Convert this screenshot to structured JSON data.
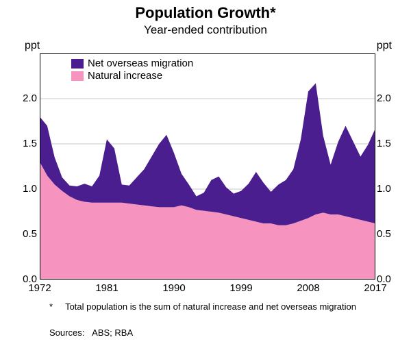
{
  "chart": {
    "type": "stacked-area",
    "title": "Population Growth*",
    "subtitle": "Year-ended contribution",
    "title_fontsize": 22,
    "subtitle_fontsize": 17,
    "unit_label": "ppt",
    "unit_fontsize": 15,
    "background_color": "#ffffff",
    "grid_color": "#c8c8c8",
    "axis_color": "#000000",
    "x": {
      "min": 1972,
      "max": 2017,
      "ticks": [
        1972,
        1981,
        1990,
        1999,
        2008,
        2017
      ]
    },
    "y": {
      "min": 0.0,
      "max": 2.5,
      "ticks": [
        0.0,
        0.5,
        1.0,
        1.5,
        2.0
      ],
      "tick_labels": [
        "0.0",
        "0.5",
        "1.0",
        "1.5",
        "2.0"
      ]
    },
    "legend": {
      "position": "top-left-inside",
      "items": [
        {
          "label": "Net overseas migration",
          "color": "#4b1e8f"
        },
        {
          "label": "Natural increase",
          "color": "#f694bf"
        }
      ]
    },
    "series": {
      "years": [
        1972,
        1973,
        1974,
        1975,
        1976,
        1977,
        1978,
        1979,
        1980,
        1981,
        1982,
        1983,
        1984,
        1985,
        1986,
        1987,
        1988,
        1989,
        1990,
        1991,
        1992,
        1993,
        1994,
        1995,
        1996,
        1997,
        1998,
        1999,
        2000,
        2001,
        2002,
        2003,
        2004,
        2005,
        2006,
        2007,
        2008,
        2009,
        2010,
        2011,
        2012,
        2013,
        2014,
        2015,
        2016,
        2017
      ],
      "natural_increase": {
        "color": "#f694bf",
        "values": [
          1.3,
          1.15,
          1.05,
          0.98,
          0.92,
          0.88,
          0.86,
          0.85,
          0.85,
          0.85,
          0.85,
          0.85,
          0.84,
          0.83,
          0.82,
          0.81,
          0.8,
          0.8,
          0.8,
          0.82,
          0.8,
          0.77,
          0.76,
          0.75,
          0.74,
          0.72,
          0.7,
          0.68,
          0.66,
          0.64,
          0.62,
          0.62,
          0.6,
          0.6,
          0.62,
          0.65,
          0.68,
          0.72,
          0.74,
          0.72,
          0.72,
          0.7,
          0.68,
          0.66,
          0.64,
          0.62
        ]
      },
      "net_overseas_migration": {
        "color": "#4b1e8f",
        "values": [
          0.5,
          0.55,
          0.3,
          0.15,
          0.12,
          0.15,
          0.2,
          0.18,
          0.3,
          0.7,
          0.6,
          0.2,
          0.2,
          0.3,
          0.4,
          0.55,
          0.7,
          0.8,
          0.6,
          0.35,
          0.25,
          0.15,
          0.2,
          0.35,
          0.4,
          0.3,
          0.25,
          0.3,
          0.4,
          0.55,
          0.45,
          0.35,
          0.45,
          0.5,
          0.6,
          0.9,
          1.4,
          1.45,
          0.85,
          0.55,
          0.8,
          1.0,
          0.85,
          0.7,
          0.85,
          1.05
        ]
      }
    },
    "footnote": {
      "marker": "*",
      "text": "Total population is the sum of natural increase and net overseas migration"
    },
    "sources_label": "Sources:",
    "sources": "ABS; RBA"
  }
}
